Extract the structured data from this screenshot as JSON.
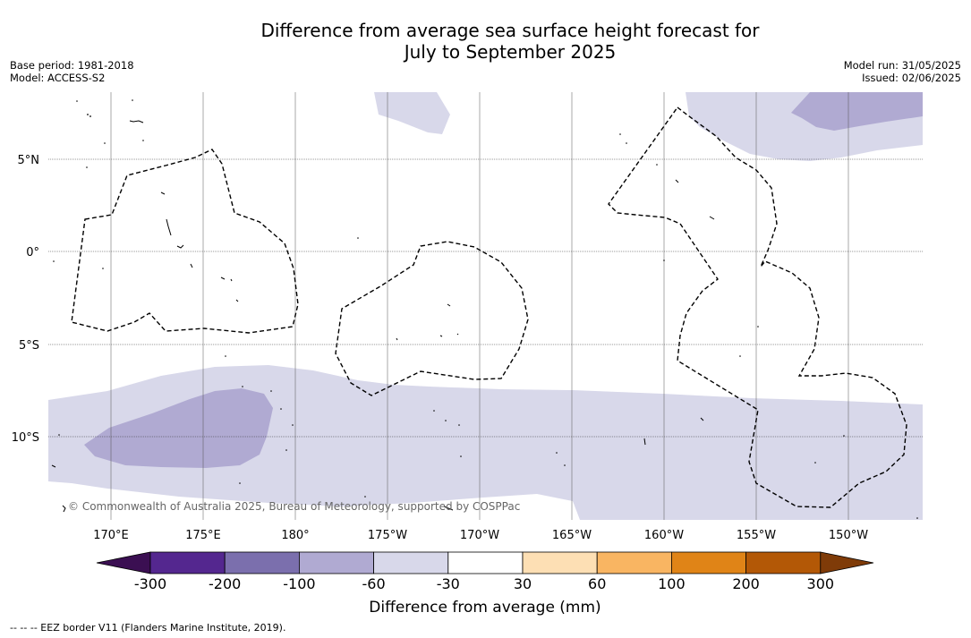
{
  "title": {
    "line1": "Difference from average sea surface height forecast for",
    "line2": "July to September 2025"
  },
  "meta_left": {
    "base_period": "Base period: 1981-2018",
    "model": "Model: ACCESS-S2"
  },
  "meta_right": {
    "model_run": "Model run: 31/05/2025",
    "issued": "Issued: 02/06/2025"
  },
  "map": {
    "lat_labels": [
      "5°N",
      "0°",
      "5°S",
      "10°S"
    ],
    "lon_labels": [
      "170°E",
      "175°E",
      "180°",
      "175°W",
      "170°W",
      "165°W",
      "160°W",
      "155°W",
      "150°W"
    ],
    "copyright": "© Commonwealth of Australia 2025, Bureau of Meteorology, supported by COSPPac",
    "border_style": "dashed"
  },
  "colorbar": {
    "title": "Difference from average (mm)",
    "tick_labels": [
      "-300",
      "-200",
      "-100",
      "-60",
      "-30",
      "30",
      "60",
      "100",
      "200",
      "300"
    ],
    "colors": [
      "#3b0f52",
      "#54278f",
      "#7b6fad",
      "#b0aad2",
      "#d8d8ea",
      "#ffffff",
      "#fddfb4",
      "#f9b562",
      "#e08417",
      "#b35806",
      "#7f3b08"
    ]
  },
  "footnote": "--  --  -- EEZ border V11 (Flanders Marine Institute, 2019)."
}
